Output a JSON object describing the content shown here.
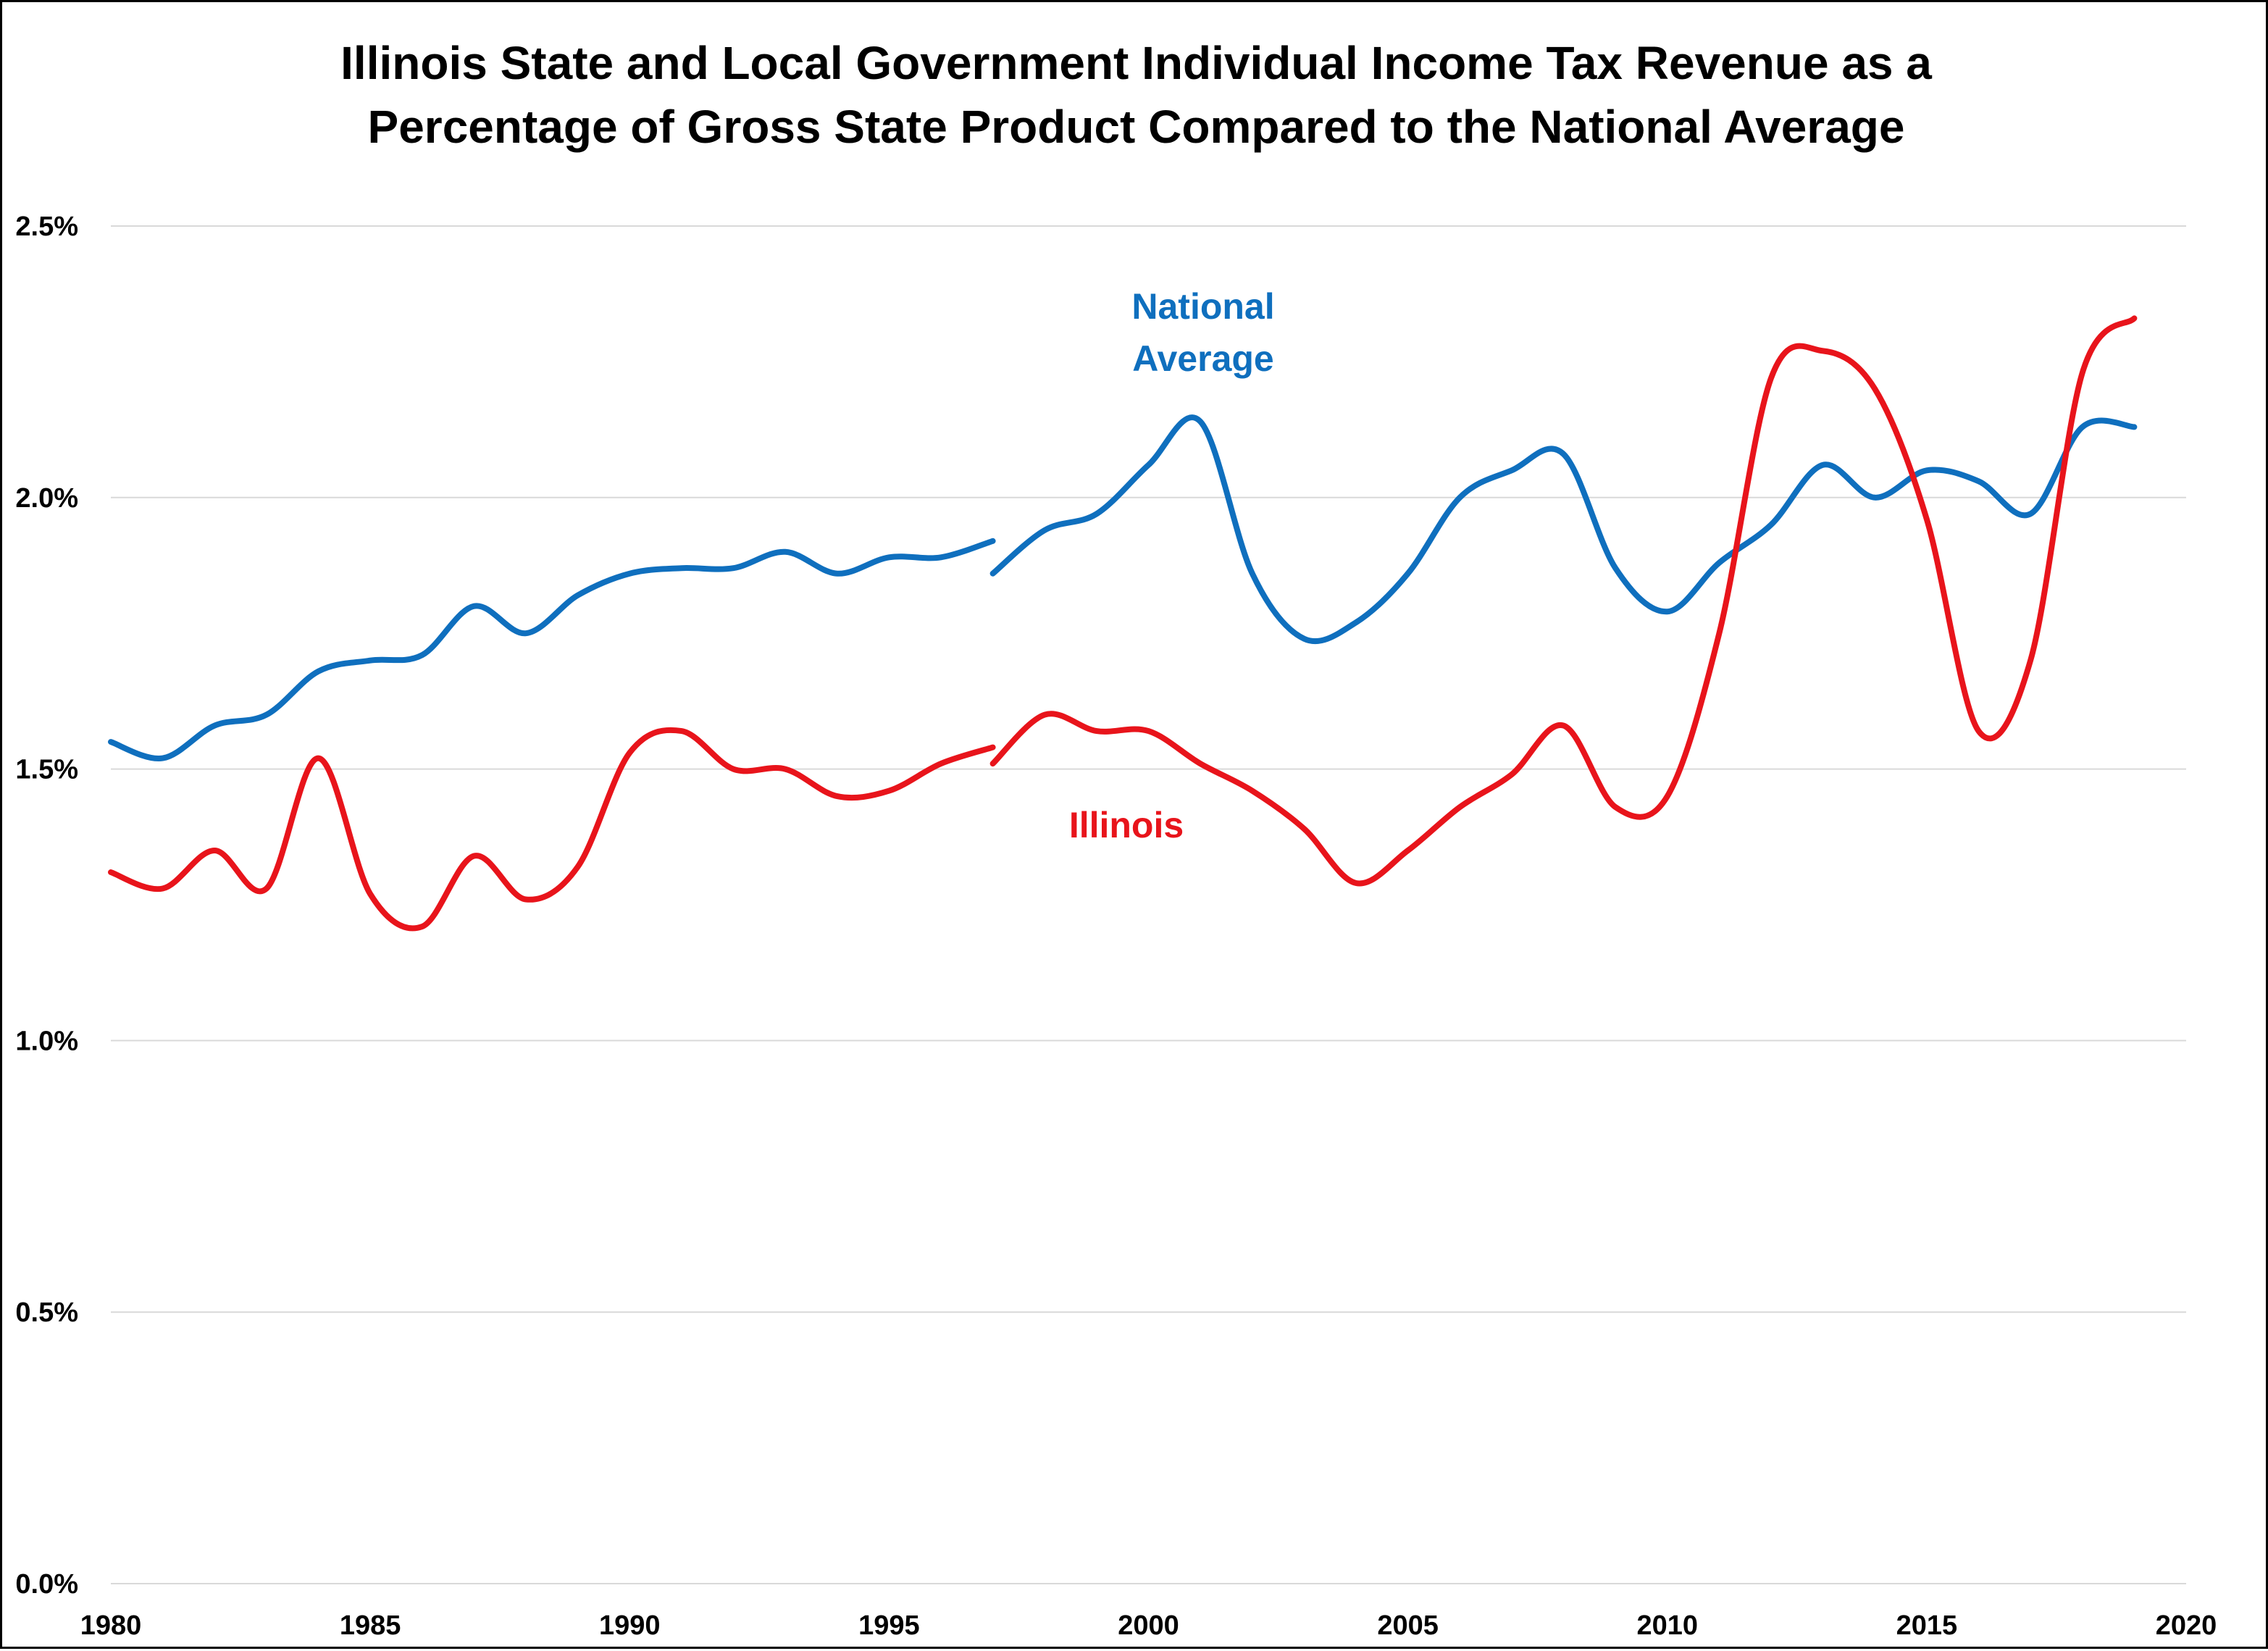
{
  "chart_data": {
    "type": "line",
    "title_lines": [
      "Illinois State and Local Government Individual Income Tax Revenue as a",
      "Percentage of Gross State Product Compared to the National Average"
    ],
    "xlabel": "",
    "ylabel": "",
    "xlim": [
      1980,
      2020
    ],
    "ylim": [
      0,
      2.5
    ],
    "x_ticks": [
      1980,
      1985,
      1990,
      1995,
      2000,
      2005,
      2010,
      2015,
      2020
    ],
    "y_ticks": [
      {
        "value": 0.0,
        "label": "0.0%"
      },
      {
        "value": 0.5,
        "label": "0.5%"
      },
      {
        "value": 1.0,
        "label": "1.0%"
      },
      {
        "value": 1.5,
        "label": "1.5%"
      },
      {
        "value": 2.0,
        "label": "2.0%"
      },
      {
        "value": 2.5,
        "label": "2.5%"
      }
    ],
    "grid": "horizontal",
    "legend": "none",
    "series": [
      {
        "name": "National Average",
        "label_lines": [
          "National",
          "Average"
        ],
        "color": "#0F6FBE",
        "segments": [
          {
            "x": [
              1980,
              1981,
              1982,
              1983,
              1984,
              1985,
              1986,
              1987,
              1988,
              1989,
              1990,
              1991,
              1992,
              1993,
              1994,
              1995,
              1996,
              1997
            ],
            "y": [
              1.55,
              1.52,
              1.58,
              1.6,
              1.68,
              1.7,
              1.71,
              1.8,
              1.75,
              1.82,
              1.86,
              1.87,
              1.87,
              1.9,
              1.86,
              1.89,
              1.89,
              1.92
            ]
          },
          {
            "x": [
              1997,
              1998,
              1999,
              2000,
              2001,
              2002,
              2003,
              2004,
              2005,
              2006,
              2007,
              2008,
              2009,
              2010,
              2011,
              2012,
              2013,
              2014,
              2015,
              2016,
              2017,
              2018,
              2019
            ],
            "y": [
              1.86,
              1.94,
              1.97,
              2.06,
              2.14,
              1.86,
              1.74,
              1.77,
              1.86,
              2.0,
              2.05,
              2.08,
              1.87,
              1.79,
              1.88,
              1.95,
              2.06,
              2.0,
              2.05,
              2.03,
              1.97,
              2.13,
              2.13
            ]
          }
        ]
      },
      {
        "name": "Illinois",
        "label_lines": [
          "Illinois"
        ],
        "color": "#E8141B",
        "segments": [
          {
            "x": [
              1980,
              1981,
              1982,
              1983,
              1984,
              1985,
              1986,
              1987,
              1988,
              1989,
              1990,
              1991,
              1992,
              1993,
              1994,
              1995,
              1996,
              1997
            ],
            "y": [
              1.31,
              1.28,
              1.35,
              1.28,
              1.52,
              1.27,
              1.21,
              1.34,
              1.26,
              1.32,
              1.53,
              1.57,
              1.5,
              1.5,
              1.45,
              1.46,
              1.51,
              1.54
            ]
          },
          {
            "x": [
              1997,
              1998,
              1999,
              2000,
              2001,
              2002,
              2003,
              2004,
              2005,
              2006,
              2007,
              2008,
              2009,
              2010,
              2011,
              2012,
              2013,
              2014,
              2015,
              2016,
              2017,
              2018,
              2019
            ],
            "y": [
              1.51,
              1.6,
              1.57,
              1.57,
              1.51,
              1.46,
              1.39,
              1.29,
              1.35,
              1.43,
              1.49,
              1.58,
              1.43,
              1.45,
              1.75,
              2.22,
              2.27,
              2.2,
              1.96,
              1.57,
              1.7,
              2.23,
              2.33
            ]
          }
        ]
      }
    ]
  }
}
